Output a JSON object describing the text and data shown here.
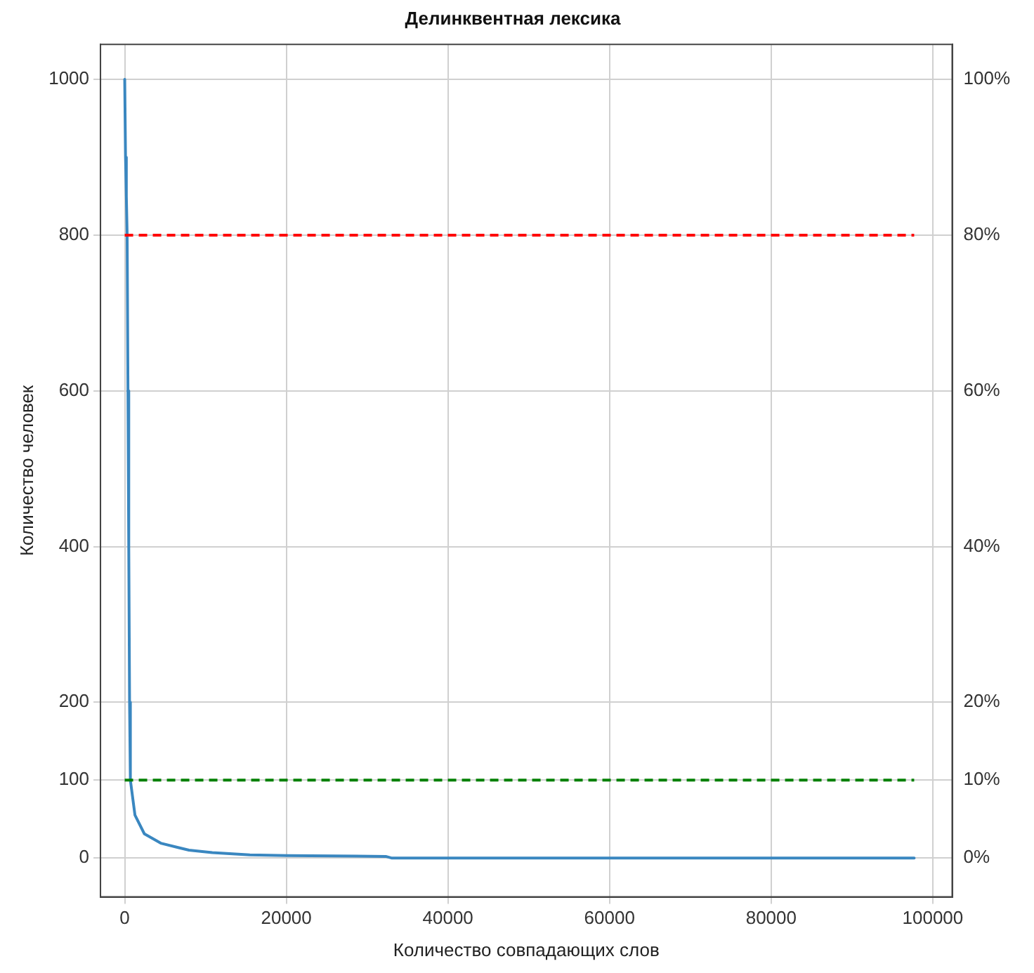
{
  "chart_data": {
    "type": "line",
    "title": "Делинквентная лексика",
    "xlabel": "Количество совпадающих слов",
    "ylabel": "Количество человек",
    "x": [
      0,
      100,
      200,
      300,
      400,
      500,
      600,
      700,
      1270,
      2430,
      4460,
      7950,
      10840,
      15480,
      20120,
      32300,
      33000,
      50000,
      70000,
      97700
    ],
    "series": [
      {
        "color": "#3a87c0",
        "values": [
          1000,
          900,
          850,
          800,
          600,
          400,
          200,
          100,
          55,
          31,
          19,
          10,
          7,
          4,
          3,
          2,
          0,
          0,
          0,
          0
        ]
      }
    ],
    "xlim": [
      -3000,
      102400
    ],
    "xticks": [
      0,
      20000,
      40000,
      60000,
      80000,
      100000
    ],
    "ylim": [
      -50,
      1045
    ],
    "yticks": [
      0,
      100,
      200,
      400,
      600,
      800,
      1000
    ],
    "y2lim": [
      -5,
      104.5
    ],
    "y2ticks": [
      {
        "value": 0,
        "label": "0%"
      },
      {
        "value": 10,
        "label": "10%"
      },
      {
        "value": 20,
        "label": "20%"
      },
      {
        "value": 40,
        "label": "40%"
      },
      {
        "value": 60,
        "label": "60%"
      },
      {
        "value": 80,
        "label": "80%"
      },
      {
        "value": 100,
        "label": "100%"
      }
    ],
    "ref_lines": [
      {
        "axis": "y",
        "value": 800,
        "color": "#ff0000",
        "line_style": "dashed"
      },
      {
        "axis": "y",
        "value": 100,
        "color": "#008000",
        "line_style": "dashed"
      }
    ],
    "grid": true,
    "legend": false,
    "marker": "none",
    "line_style": "solid"
  }
}
